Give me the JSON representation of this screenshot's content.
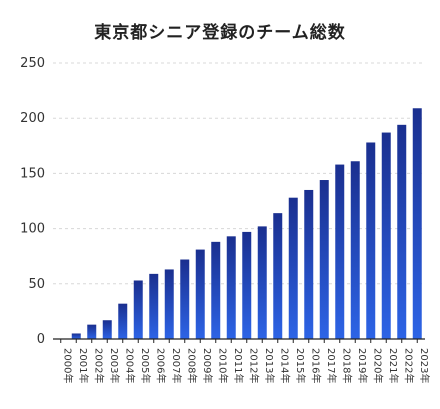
{
  "chart_data": {
    "type": "bar",
    "title": "東京都シニア登録のチーム総数",
    "xlabel": "",
    "ylabel": "",
    "categories": [
      "2000年",
      "2001年",
      "2002年",
      "2003年",
      "2004年",
      "2005年",
      "2006年",
      "2007年",
      "2008年",
      "2009年",
      "2010年",
      "2011年",
      "2012年",
      "2013年",
      "2014年",
      "2015年",
      "2016年",
      "2017年",
      "2018年",
      "2019年",
      "2020年",
      "2021年",
      "2022年",
      "2023年"
    ],
    "values": [
      0,
      5,
      13,
      17,
      32,
      53,
      59,
      63,
      72,
      81,
      88,
      93,
      97,
      102,
      114,
      128,
      135,
      144,
      158,
      161,
      178,
      187,
      194,
      209
    ],
    "ylim": [
      0,
      250
    ],
    "yticks": [
      0,
      50,
      100,
      150,
      200,
      250
    ],
    "grid": true,
    "colors": {
      "bar_top": "#1a2f8f",
      "bar_bottom": "#2d64e6",
      "grid": "#d8d8d8",
      "axis": "#222222"
    }
  }
}
